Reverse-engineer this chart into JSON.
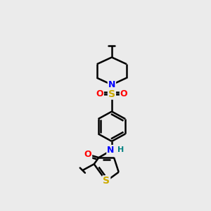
{
  "background_color": "#ebebeb",
  "bond_color": "#000000",
  "atom_colors": {
    "N": "#0000ff",
    "O": "#ff0000",
    "S": "#ccaa00",
    "H": "#008080"
  },
  "line_width": 1.8,
  "figsize": [
    3.0,
    3.0
  ],
  "dpi": 100
}
